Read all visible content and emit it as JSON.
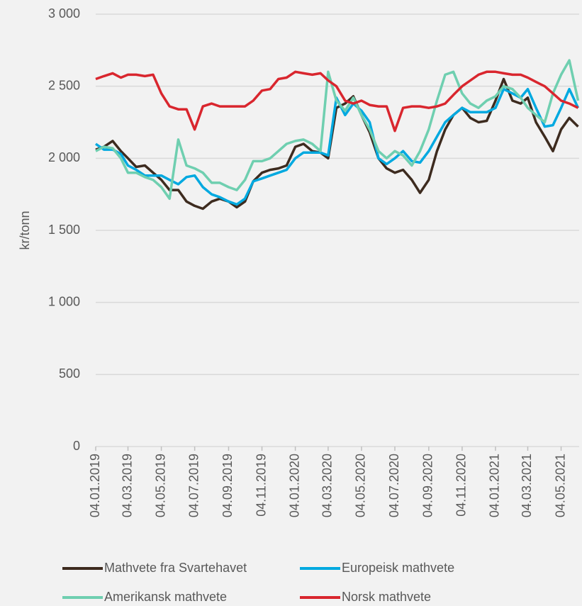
{
  "chart_data": {
    "type": "line",
    "y_label": "kr/tonn",
    "x": [
      "04.01.2019",
      "19.01.2019",
      "04.02.2019",
      "19.02.2019",
      "04.03.2019",
      "19.03.2019",
      "04.04.2019",
      "19.04.2019",
      "04.05.2019",
      "19.05.2019",
      "04.06.2019",
      "19.06.2019",
      "04.07.2019",
      "19.07.2019",
      "04.08.2019",
      "19.08.2019",
      "04.09.2019",
      "19.09.2019",
      "04.10.2019",
      "19.10.2019",
      "04.11.2019",
      "19.11.2019",
      "04.12.2019",
      "19.12.2019",
      "04.01.2020",
      "19.01.2020",
      "04.02.2020",
      "19.02.2020",
      "04.03.2020",
      "19.03.2020",
      "04.04.2020",
      "19.04.2020",
      "04.05.2020",
      "19.05.2020",
      "04.06.2020",
      "19.06.2020",
      "04.07.2020",
      "19.07.2020",
      "04.08.2020",
      "19.08.2020",
      "04.09.2020",
      "19.09.2020",
      "04.10.2020",
      "19.10.2020",
      "04.11.2020",
      "19.11.2020",
      "04.12.2020",
      "19.12.2020",
      "04.01.2021",
      "19.01.2021",
      "04.02.2021",
      "19.02.2021",
      "04.03.2021",
      "19.03.2021",
      "04.04.2021",
      "19.04.2021",
      "04.05.2021",
      "19.05.2021",
      "04.06.2021"
    ],
    "series": [
      {
        "name": "Mathvete fra Svartehavet",
        "color": "#3d2b1f",
        "values": [
          2060,
          2080,
          2120,
          2050,
          2000,
          1940,
          1950,
          1900,
          1850,
          1780,
          1780,
          1700,
          1670,
          1650,
          1700,
          1720,
          1700,
          1660,
          1700,
          1840,
          1900,
          1920,
          1930,
          1950,
          2080,
          2100,
          2050,
          2040,
          2000,
          2350,
          2380,
          2430,
          2300,
          2180,
          2000,
          1930,
          1900,
          1920,
          1850,
          1760,
          1850,
          2050,
          2200,
          2300,
          2350,
          2280,
          2250,
          2260,
          2400,
          2550,
          2400,
          2380,
          2420,
          2250,
          2150,
          2050,
          2200,
          2280,
          2220
        ]
      },
      {
        "name": "Europeisk mathvete",
        "color": "#00a9e0",
        "values": [
          2100,
          2060,
          2060,
          2030,
          1950,
          1920,
          1880,
          1880,
          1880,
          1850,
          1820,
          1870,
          1880,
          1800,
          1750,
          1730,
          1700,
          1680,
          1720,
          1840,
          1860,
          1880,
          1900,
          1920,
          2000,
          2040,
          2040,
          2040,
          2020,
          2420,
          2300,
          2380,
          2330,
          2250,
          2000,
          1960,
          2000,
          2050,
          1980,
          1970,
          2050,
          2150,
          2250,
          2300,
          2350,
          2320,
          2320,
          2320,
          2350,
          2480,
          2450,
          2420,
          2480,
          2350,
          2220,
          2230,
          2350,
          2480,
          2350
        ]
      },
      {
        "name": "Amerikansk mathvete",
        "color": "#6fcfb0",
        "values": [
          2050,
          2080,
          2070,
          2000,
          1900,
          1900,
          1870,
          1850,
          1800,
          1720,
          2130,
          1950,
          1930,
          1900,
          1830,
          1830,
          1800,
          1780,
          1850,
          1980,
          1980,
          2000,
          2050,
          2100,
          2120,
          2130,
          2100,
          2050,
          2600,
          2400,
          2330,
          2420,
          2300,
          2200,
          2050,
          2000,
          2050,
          2020,
          1950,
          2050,
          2200,
          2400,
          2580,
          2600,
          2450,
          2380,
          2350,
          2400,
          2430,
          2500,
          2480,
          2420,
          2350,
          2300,
          2250,
          2450,
          2580,
          2680,
          2400
        ]
      },
      {
        "name": "Norsk mathvete",
        "color": "#d9262e",
        "values": [
          2550,
          2570,
          2590,
          2560,
          2580,
          2580,
          2570,
          2580,
          2450,
          2360,
          2340,
          2340,
          2200,
          2360,
          2380,
          2360,
          2360,
          2360,
          2360,
          2400,
          2470,
          2480,
          2550,
          2560,
          2600,
          2590,
          2580,
          2590,
          2540,
          2500,
          2400,
          2380,
          2400,
          2370,
          2360,
          2360,
          2190,
          2350,
          2360,
          2360,
          2350,
          2360,
          2380,
          2440,
          2500,
          2540,
          2580,
          2600,
          2600,
          2590,
          2580,
          2580,
          2560,
          2530,
          2500,
          2450,
          2400,
          2380,
          2350
        ]
      }
    ],
    "xlim": [
      "04.01.2019",
      "06.06.2021"
    ],
    "xticks": [
      "04.01.2019",
      "04.03.2019",
      "04.05.2019",
      "04.07.2019",
      "04.09.2019",
      "04.11.2019",
      "04.01.2020",
      "04.03.2020",
      "04.05.2020",
      "04.07.2020",
      "04.09.2020",
      "04.11.2020",
      "04.01.2021",
      "04.03.2021",
      "04.05.2021"
    ],
    "ylim": [
      0,
      3000
    ],
    "yticks": [
      0,
      500,
      {
        "value": 1000,
        "label": "1 000"
      },
      {
        "value": 1500,
        "label": "1 500"
      },
      {
        "value": 2000,
        "label": "2 000"
      },
      {
        "value": 2500,
        "label": "2 500"
      },
      {
        "value": 3000,
        "label": "3 000"
      }
    ],
    "grid": true
  }
}
